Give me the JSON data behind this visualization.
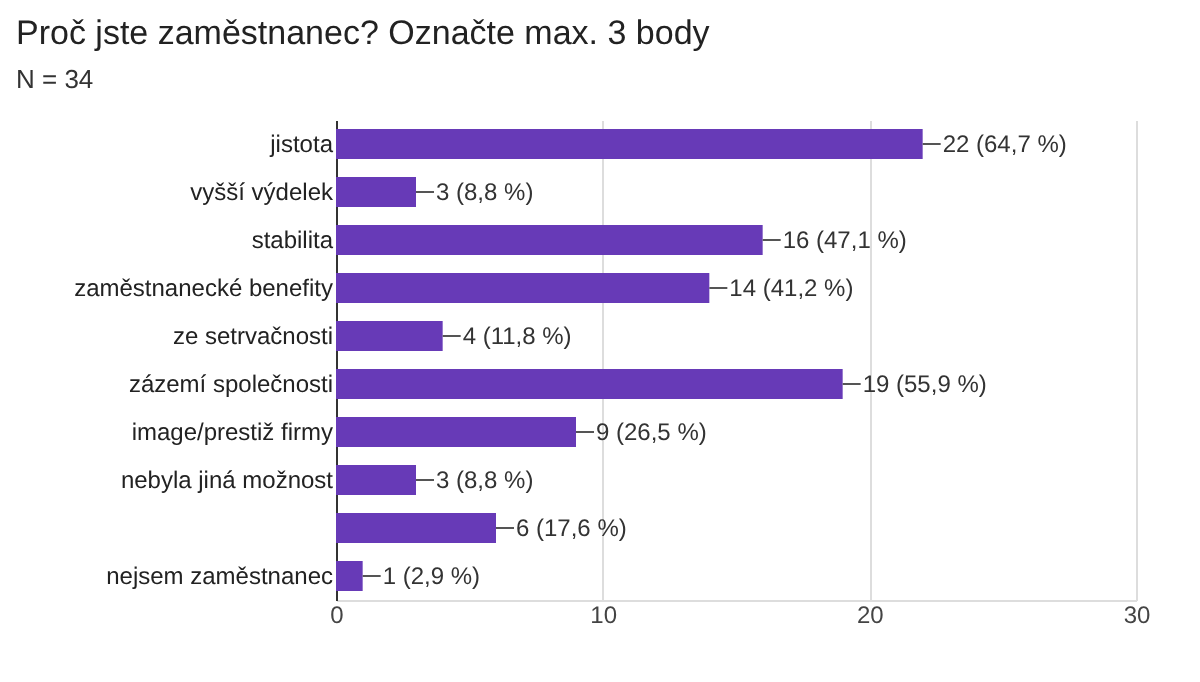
{
  "chart_data": {
    "type": "bar",
    "orientation": "horizontal",
    "title": "Proč jste zaměstnanec? Označte max. 3 body",
    "subtitle": "N = 34",
    "categories": [
      "jistota",
      "vyšší výdelek",
      "stabilita",
      "zaměstnanecké benefity",
      "ze setrvačnosti",
      "zázemí společnosti",
      "image/prestiž firmy",
      "nebyla jiná možnost",
      null,
      "nejsem zaměstnanec"
    ],
    "values": [
      22,
      3,
      16,
      14,
      4,
      19,
      9,
      3,
      6,
      1
    ],
    "value_labels": [
      "22 (64,7 %)",
      "3 (8,8 %)",
      "16 (47,1 %)",
      "14 (41,2 %)",
      "4 (11,8 %)",
      "19 (55,9 %)",
      "9 (26,5 %)",
      "3 (8,8 %)",
      "6 (17,6 %)",
      "1 (2,9 %)"
    ],
    "color": "#673ab7",
    "xlim": [
      0,
      30
    ],
    "xticks": [
      0,
      10,
      20,
      30
    ],
    "grid": "x"
  }
}
